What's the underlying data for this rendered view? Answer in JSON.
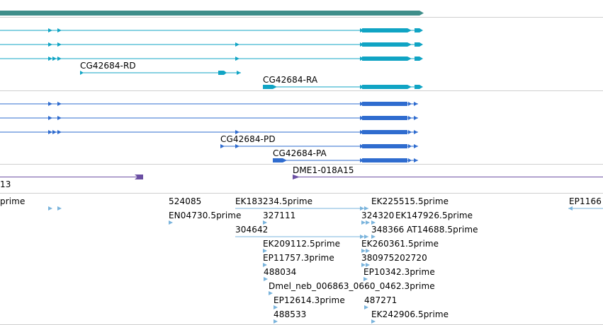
{
  "colors": {
    "gene": "#3f8e8a",
    "transcript_rd_ra": "#10a4c4",
    "transcript_pd_pa": "#2f6ccf",
    "clone": "#6b4fa3",
    "est": "#7ab4dc",
    "separator": "#cfcfcf"
  },
  "tracks": {
    "gene_model": {
      "icon": "thick-gene-bar"
    },
    "transcripts": {
      "labels": [
        "CG42684-RD",
        "CG42684-RA"
      ]
    },
    "proteins": {
      "labels": [
        "CG42684-PD",
        "CG42684-PA"
      ]
    },
    "clones": {
      "labels": [
        "DME1-018A15",
        "13"
      ]
    },
    "ests": {
      "labels": [
        "prime",
        "524085",
        "EK183234.5prime",
        "EK225515.5prime",
        "EP1166",
        "EN04730.5prime",
        "327111",
        "324320",
        "EK147926.5prime",
        "304642",
        "348366",
        "AT14688.5prime",
        "EK209112.5prime",
        "EK260361.5prime",
        "EP11757.3prime",
        "380975202720",
        "488034",
        "EP10342.3prime",
        "Dmel_neb_006863_0660_0462.3prime",
        "EP12614.3prime",
        "487271",
        "488533",
        "EK242906.5prime"
      ]
    }
  }
}
